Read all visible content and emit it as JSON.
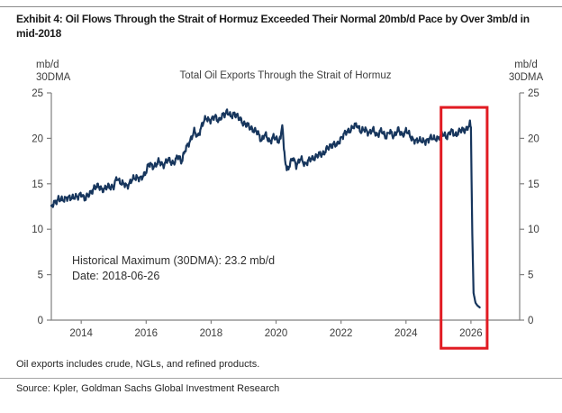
{
  "header": {
    "exhibit_title": "Exhibit 4: Oil Flows Through the Strait of Hormuz Exceeded Their Normal 20mb/d Pace by Over 3mb/d in mid-2018"
  },
  "footer": {
    "note": "Oil exports includes crude, NGLs, and refined products.",
    "source": "Source: Kpler, Goldman Sachs Global Investment Research"
  },
  "colors": {
    "line": "#17365d",
    "highlight_red": "#e11b22",
    "axis": "#808080",
    "rule_gray": "#8c8c8c"
  },
  "chart_data": {
    "type": "line",
    "title": "Total Oil Exports Through the Strait of Hormuz",
    "axis_unit_lines": [
      "mb/d",
      "30DMA"
    ],
    "xlabel": "",
    "ylabel": "mb/d 30DMA",
    "xlim": [
      2013.08,
      2027.5
    ],
    "ylim": [
      0,
      25
    ],
    "xticks": [
      2014,
      2016,
      2018,
      2020,
      2022,
      2024,
      2026
    ],
    "yticks": [
      0,
      5,
      10,
      15,
      20,
      25
    ],
    "grid": false,
    "legend": "none",
    "line_color": "#17365d",
    "axis_color": "#808080",
    "annotation": {
      "lines": [
        "Historical Maximum (30DMA): 23.2 mb/d",
        "Date: 2018-06-26"
      ]
    },
    "highlight_box": {
      "x0": 2025.08,
      "x1": 2026.5,
      "y_top": 23.4,
      "y_bottom": -3.1,
      "color": "#e11b22",
      "stroke_width": 3
    },
    "noise": {
      "amplitude": 0.22,
      "frequencies": [
        57,
        131,
        23
      ],
      "phases": [
        0.0,
        1.7,
        0.6
      ],
      "weights": [
        1.0,
        0.7,
        0.5
      ],
      "cutoff_x": 2025.98
    },
    "series": [
      {
        "name": "Total oil exports through Strait of Hormuz (30DMA, mb/d)",
        "points": [
          [
            2013.08,
            12.4
          ],
          [
            2013.18,
            12.9
          ],
          [
            2013.3,
            13.4
          ],
          [
            2013.42,
            13.1
          ],
          [
            2013.55,
            13.6
          ],
          [
            2013.68,
            13.3
          ],
          [
            2013.8,
            13.7
          ],
          [
            2013.92,
            13.5
          ],
          [
            2014.0,
            13.9
          ],
          [
            2014.12,
            13.4
          ],
          [
            2014.25,
            13.8
          ],
          [
            2014.4,
            14.6
          ],
          [
            2014.55,
            14.7
          ],
          [
            2014.7,
            14.3
          ],
          [
            2014.85,
            14.8
          ],
          [
            2015.0,
            14.6
          ],
          [
            2015.1,
            15.7
          ],
          [
            2015.25,
            15.0
          ],
          [
            2015.4,
            14.8
          ],
          [
            2015.55,
            15.3
          ],
          [
            2015.7,
            15.8
          ],
          [
            2015.85,
            15.5
          ],
          [
            2015.95,
            16.1
          ],
          [
            2016.08,
            17.1
          ],
          [
            2016.22,
            16.9
          ],
          [
            2016.38,
            17.4
          ],
          [
            2016.52,
            17.1
          ],
          [
            2016.68,
            17.6
          ],
          [
            2016.85,
            17.3
          ],
          [
            2017.0,
            18.0
          ],
          [
            2017.08,
            17.5
          ],
          [
            2017.2,
            18.6
          ],
          [
            2017.35,
            19.8
          ],
          [
            2017.48,
            20.7
          ],
          [
            2017.58,
            20.2
          ],
          [
            2017.72,
            21.4
          ],
          [
            2017.85,
            22.3
          ],
          [
            2018.0,
            21.9
          ],
          [
            2018.12,
            22.5
          ],
          [
            2018.25,
            21.9
          ],
          [
            2018.38,
            22.6
          ],
          [
            2018.49,
            23.0
          ],
          [
            2018.6,
            22.3
          ],
          [
            2018.72,
            22.8
          ],
          [
            2018.85,
            22.2
          ],
          [
            2019.0,
            21.7
          ],
          [
            2019.15,
            21.3
          ],
          [
            2019.3,
            21.0
          ],
          [
            2019.45,
            20.5
          ],
          [
            2019.55,
            19.8
          ],
          [
            2019.65,
            20.4
          ],
          [
            2019.8,
            19.7
          ],
          [
            2019.92,
            20.1
          ],
          [
            2020.05,
            19.8
          ],
          [
            2020.14,
            20.0
          ],
          [
            2020.19,
            21.7
          ],
          [
            2020.24,
            18.6
          ],
          [
            2020.33,
            16.6
          ],
          [
            2020.42,
            17.1
          ],
          [
            2020.52,
            17.8
          ],
          [
            2020.62,
            17.1
          ],
          [
            2020.75,
            17.7
          ],
          [
            2020.88,
            17.2
          ],
          [
            2021.0,
            17.5
          ],
          [
            2021.15,
            17.9
          ],
          [
            2021.3,
            18.1
          ],
          [
            2021.45,
            18.4
          ],
          [
            2021.6,
            18.9
          ],
          [
            2021.75,
            19.4
          ],
          [
            2021.88,
            19.2
          ],
          [
            2022.0,
            20.1
          ],
          [
            2022.12,
            20.5
          ],
          [
            2022.25,
            20.9
          ],
          [
            2022.38,
            21.2
          ],
          [
            2022.5,
            21.5
          ],
          [
            2022.62,
            20.7
          ],
          [
            2022.75,
            21.0
          ],
          [
            2022.88,
            20.6
          ],
          [
            2023.0,
            20.9
          ],
          [
            2023.12,
            20.4
          ],
          [
            2023.25,
            20.8
          ],
          [
            2023.38,
            20.2
          ],
          [
            2023.5,
            20.7
          ],
          [
            2023.62,
            20.3
          ],
          [
            2023.75,
            20.9
          ],
          [
            2023.88,
            20.4
          ],
          [
            2024.0,
            20.8
          ],
          [
            2024.15,
            20.2
          ],
          [
            2024.3,
            19.6
          ],
          [
            2024.45,
            19.9
          ],
          [
            2024.6,
            19.5
          ],
          [
            2024.75,
            20.2
          ],
          [
            2024.88,
            19.8
          ],
          [
            2025.0,
            20.1
          ],
          [
            2025.12,
            20.4
          ],
          [
            2025.25,
            20.2
          ],
          [
            2025.38,
            20.8
          ],
          [
            2025.5,
            20.4
          ],
          [
            2025.62,
            20.7
          ],
          [
            2025.75,
            20.9
          ],
          [
            2025.88,
            21.1
          ],
          [
            2025.97,
            21.5
          ],
          [
            2026.0,
            21.2
          ],
          [
            2026.04,
            9.5
          ],
          [
            2026.08,
            3.0
          ],
          [
            2026.14,
            1.9
          ],
          [
            2026.2,
            1.6
          ],
          [
            2026.27,
            1.4
          ]
        ]
      }
    ]
  }
}
